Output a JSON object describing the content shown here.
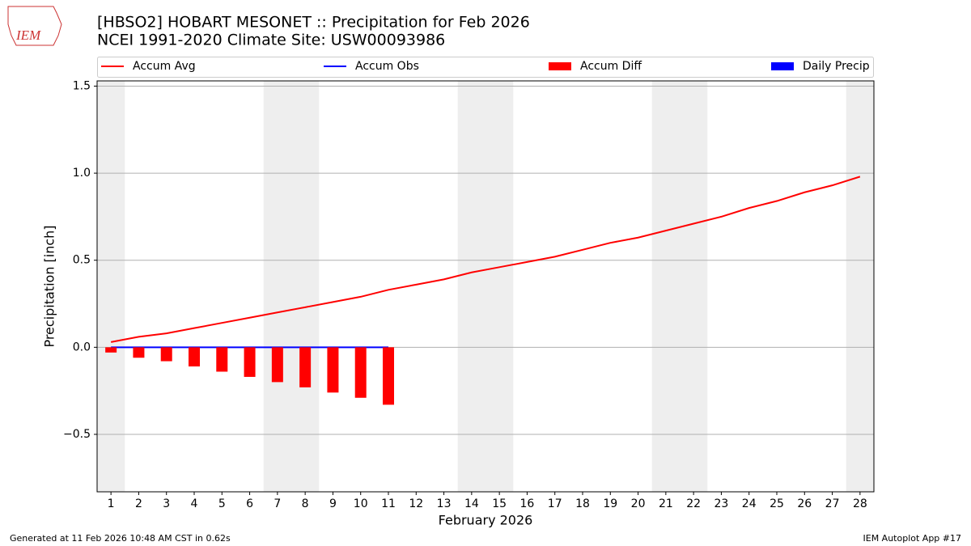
{
  "logo_text": "IEM",
  "footer_left": "Generated at 11 Feb 2026 10:48 AM CST in 0.62s",
  "footer_right": "IEM Autoplot App #17",
  "chart_data": {
    "type": "bar",
    "title": "[HBSO2] HOBART MESONET :: Precipitation for Feb 2026",
    "subtitle": "NCEI 1991-2020 Climate Site: USW00093986",
    "xlabel": "February 2026",
    "ylabel": "Precipitation [inch]",
    "x": [
      1,
      2,
      3,
      4,
      5,
      6,
      7,
      8,
      9,
      10,
      11,
      12,
      13,
      14,
      15,
      16,
      17,
      18,
      19,
      20,
      21,
      22,
      23,
      24,
      25,
      26,
      27,
      28
    ],
    "xlim": [
      0.5,
      28.5
    ],
    "xticks": [
      1,
      2,
      3,
      4,
      5,
      6,
      7,
      8,
      9,
      10,
      11,
      12,
      13,
      14,
      15,
      16,
      17,
      18,
      19,
      20,
      21,
      22,
      23,
      24,
      25,
      26,
      27,
      28
    ],
    "ylim": [
      -0.83,
      1.53
    ],
    "yticks": [
      {
        "value": -0.5,
        "label": "−0.5"
      },
      {
        "value": 0,
        "label": "0.0"
      },
      0.5,
      {
        "value": 1,
        "label": "1.0"
      },
      1.5
    ],
    "grid": true,
    "shaded_days": [
      1,
      7,
      8,
      14,
      15,
      21,
      22,
      28
    ],
    "series": [
      {
        "name": "Accum Avg",
        "type": "line",
        "color": "#ff0000",
        "values": [
          0.03,
          0.06,
          0.08,
          0.11,
          0.14,
          0.17,
          0.2,
          0.23,
          0.26,
          0.29,
          0.33,
          0.36,
          0.39,
          0.43,
          0.46,
          0.49,
          0.52,
          0.56,
          0.6,
          0.63,
          0.67,
          0.71,
          0.75,
          0.8,
          0.84,
          0.89,
          0.93,
          0.98
        ]
      },
      {
        "name": "Accum Obs",
        "type": "line",
        "color": "#0000ff",
        "values": [
          0,
          0,
          0,
          0,
          0,
          0,
          0,
          0,
          0,
          0,
          0,
          null,
          null,
          null,
          null,
          null,
          null,
          null,
          null,
          null,
          null,
          null,
          null,
          null,
          null,
          null,
          null,
          null
        ]
      },
      {
        "name": "Accum Diff",
        "type": "bar",
        "color": "#ff0000",
        "values": [
          -0.03,
          -0.06,
          -0.08,
          -0.11,
          -0.14,
          -0.17,
          -0.2,
          -0.23,
          -0.26,
          -0.29,
          -0.33,
          null,
          null,
          null,
          null,
          null,
          null,
          null,
          null,
          null,
          null,
          null,
          null,
          null,
          null,
          null,
          null,
          null
        ]
      },
      {
        "name": "Daily Precip",
        "type": "bar",
        "color": "#0000ff",
        "values": [
          0,
          0,
          0,
          0,
          0,
          0,
          0,
          0,
          0,
          0,
          0,
          null,
          null,
          null,
          null,
          null,
          null,
          null,
          null,
          null,
          null,
          null,
          null,
          null,
          null,
          null,
          null,
          null
        ]
      }
    ]
  }
}
